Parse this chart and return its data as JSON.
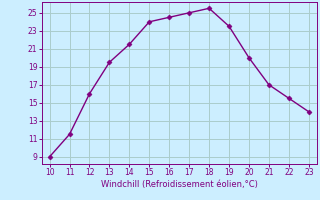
{
  "x": [
    10,
    11,
    12,
    13,
    14,
    15,
    16,
    17,
    18,
    19,
    20,
    21,
    22,
    23
  ],
  "y": [
    9,
    11.5,
    16,
    19.5,
    21.5,
    24,
    24.5,
    25,
    25.5,
    23.5,
    20,
    17,
    15.5,
    14
  ],
  "line_color": "#800080",
  "marker_color": "#800080",
  "bg_color": "#cceeff",
  "grid_color": "#aacccc",
  "xlabel": "Windchill (Refroidissement éolien,°C)",
  "xlabel_color": "#800080",
  "xlim": [
    9.6,
    23.4
  ],
  "ylim": [
    8.2,
    26.2
  ],
  "xticks": [
    10,
    11,
    12,
    13,
    14,
    15,
    16,
    17,
    18,
    19,
    20,
    21,
    22,
    23
  ],
  "yticks": [
    9,
    11,
    13,
    15,
    17,
    19,
    21,
    23,
    25
  ],
  "tick_color": "#800080",
  "tick_labelsize": 5.5,
  "xlabel_fontsize": 6.0
}
